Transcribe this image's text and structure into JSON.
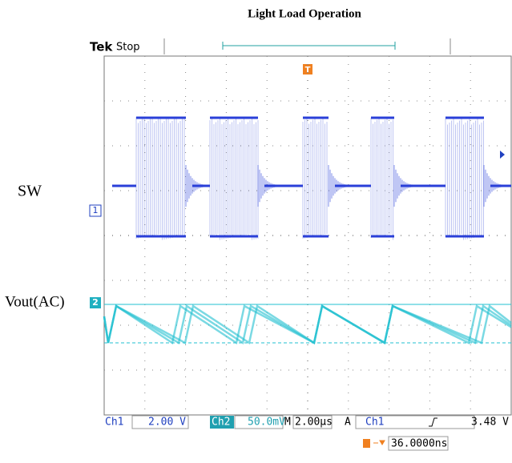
{
  "title": "Light Load Operation",
  "header": {
    "brand": "Tek",
    "status": "Stop"
  },
  "labels": {
    "sw": "SW",
    "vout": "Vout(AC)"
  },
  "markers": {
    "ch1": "1",
    "ch2": "2",
    "trigger": "T"
  },
  "status_bar": {
    "ch1": "Ch1",
    "ch1_scale": "2.00 V",
    "ch2": "Ch2",
    "ch2_scale": "50.0mV",
    "timebase_label": "M",
    "timebase": "2.00µs",
    "trigger_mode": "A",
    "trigger_source": "Ch1",
    "trigger_level": "3.48 V"
  },
  "trigger_offset": "36.0000ns"
}
